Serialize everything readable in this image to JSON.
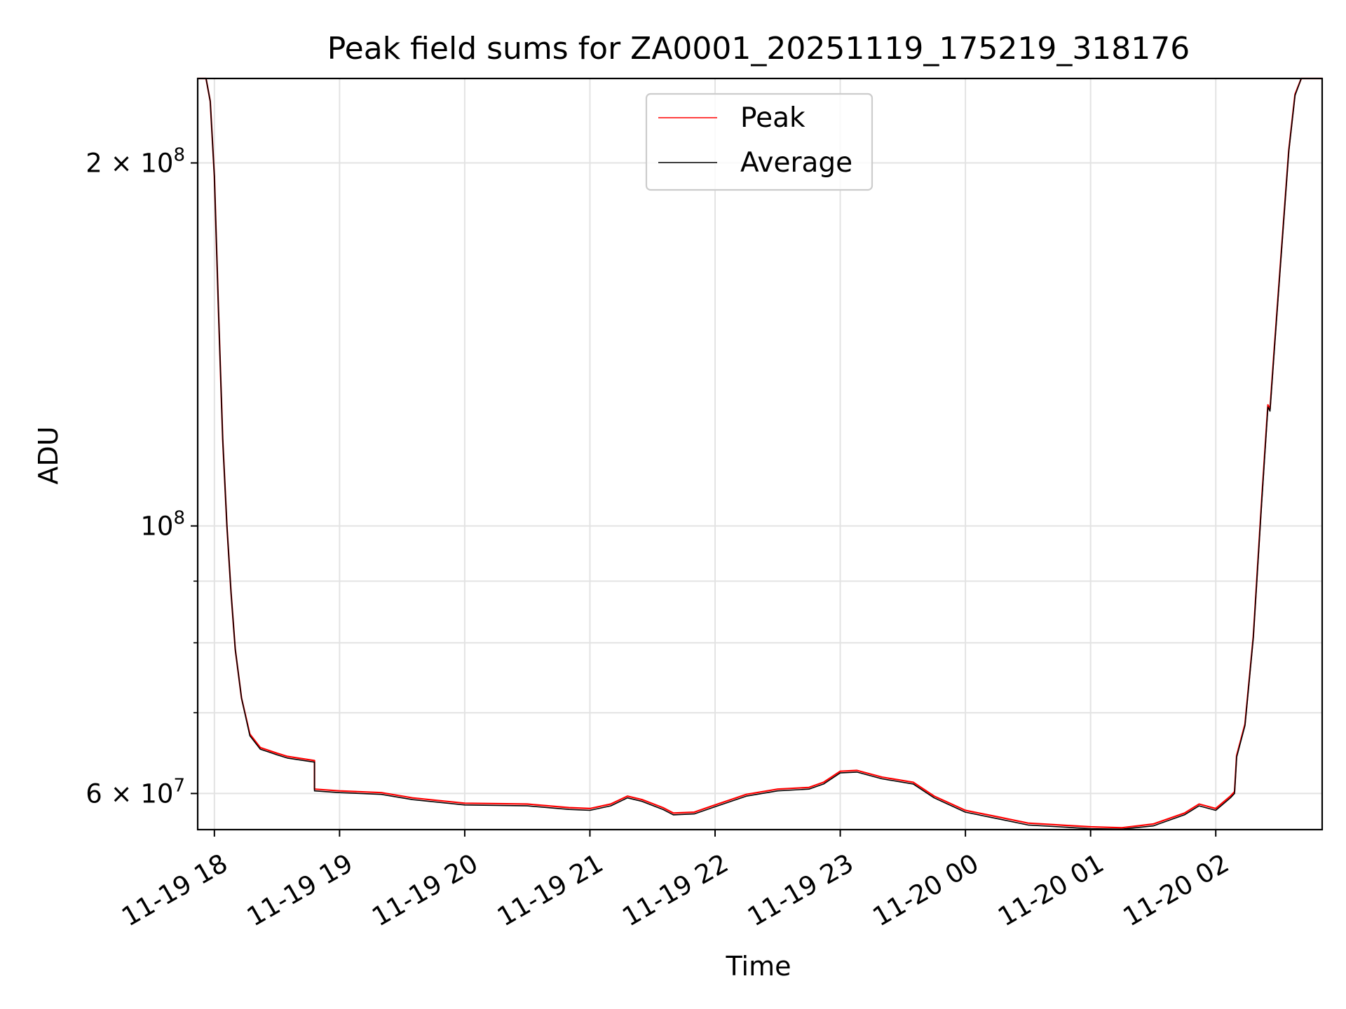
{
  "chart_data": {
    "type": "line",
    "title": "Peak field sums for ZA0001_20251119_175219_318176",
    "xlabel": "Time",
    "ylabel": "ADU",
    "y_scale": "log",
    "grid": true,
    "legend_position": "top-center",
    "xlim": [
      "2025-11-19 17:52",
      "2025-11-20 02:51"
    ],
    "ylim": [
      56000000,
      235000000
    ],
    "x_ticks": [
      {
        "time": "2025-11-19 18:00",
        "label": "11-19 18"
      },
      {
        "time": "2025-11-19 19:00",
        "label": "11-19 19"
      },
      {
        "time": "2025-11-19 20:00",
        "label": "11-19 20"
      },
      {
        "time": "2025-11-19 21:00",
        "label": "11-19 21"
      },
      {
        "time": "2025-11-19 22:00",
        "label": "11-19 22"
      },
      {
        "time": "2025-11-19 23:00",
        "label": "11-19 23"
      },
      {
        "time": "2025-11-20 00:00",
        "label": "11-20 00"
      },
      {
        "time": "2025-11-20 01:00",
        "label": "11-20 01"
      },
      {
        "time": "2025-11-20 02:00",
        "label": "11-20 02"
      }
    ],
    "y_ticks_major": [
      {
        "value": 60000000,
        "base": "6 × 10",
        "exp": "7"
      },
      {
        "value": 100000000,
        "base": "10",
        "exp": "8"
      },
      {
        "value": 200000000,
        "base": "2 × 10",
        "exp": "8"
      }
    ],
    "y_ticks_minor": [
      70000000,
      80000000,
      90000000
    ],
    "series": [
      {
        "name": "Peak",
        "color": "#ff0000",
        "points": [
          [
            "2025-11-19 17:52",
            235000000
          ],
          [
            "2025-11-19 17:56",
            235000000
          ],
          [
            "2025-11-19 17:58",
            225000000
          ],
          [
            "2025-11-19 18:00",
            195000000
          ],
          [
            "2025-11-19 18:02",
            150000000
          ],
          [
            "2025-11-19 18:04",
            118000000
          ],
          [
            "2025-11-19 18:06",
            100000000
          ],
          [
            "2025-11-19 18:08",
            88000000
          ],
          [
            "2025-11-19 18:10",
            79000000
          ],
          [
            "2025-11-19 18:13",
            72000000
          ],
          [
            "2025-11-19 18:17",
            67200000
          ],
          [
            "2025-11-19 18:22",
            65500000
          ],
          [
            "2025-11-19 18:30",
            64800000
          ],
          [
            "2025-11-19 18:35",
            64400000
          ],
          [
            "2025-11-19 18:48",
            63900000
          ],
          [
            "2025-11-19 18:48",
            60500000
          ],
          [
            "2025-11-19 19:00",
            60300000
          ],
          [
            "2025-11-19 19:20",
            60100000
          ],
          [
            "2025-11-19 19:35",
            59500000
          ],
          [
            "2025-11-19 20:00",
            58900000
          ],
          [
            "2025-11-19 20:30",
            58800000
          ],
          [
            "2025-11-19 20:50",
            58400000
          ],
          [
            "2025-11-19 21:00",
            58300000
          ],
          [
            "2025-11-19 21:10",
            58800000
          ],
          [
            "2025-11-19 21:18",
            59700000
          ],
          [
            "2025-11-19 21:25",
            59300000
          ],
          [
            "2025-11-19 21:35",
            58400000
          ],
          [
            "2025-11-19 21:40",
            57800000
          ],
          [
            "2025-11-19 21:50",
            57900000
          ],
          [
            "2025-11-19 22:00",
            58700000
          ],
          [
            "2025-11-19 22:15",
            59900000
          ],
          [
            "2025-11-19 22:30",
            60500000
          ],
          [
            "2025-11-19 22:45",
            60700000
          ],
          [
            "2025-11-19 22:52",
            61300000
          ],
          [
            "2025-11-19 23:00",
            62600000
          ],
          [
            "2025-11-19 23:08",
            62700000
          ],
          [
            "2025-11-19 23:20",
            61900000
          ],
          [
            "2025-11-19 23:35",
            61300000
          ],
          [
            "2025-11-19 23:45",
            59700000
          ],
          [
            "2025-11-20 00:00",
            58100000
          ],
          [
            "2025-11-20 00:15",
            57400000
          ],
          [
            "2025-11-20 00:30",
            56700000
          ],
          [
            "2025-11-20 00:45",
            56500000
          ],
          [
            "2025-11-20 01:00",
            56300000
          ],
          [
            "2025-11-20 01:15",
            56200000
          ],
          [
            "2025-11-20 01:30",
            56600000
          ],
          [
            "2025-11-20 01:45",
            57800000
          ],
          [
            "2025-11-20 01:52",
            58800000
          ],
          [
            "2025-11-20 02:00",
            58300000
          ],
          [
            "2025-11-20 02:07",
            59700000
          ],
          [
            "2025-11-20 02:09",
            60200000
          ],
          [
            "2025-11-20 02:10",
            64500000
          ],
          [
            "2025-11-20 02:14",
            68500000
          ],
          [
            "2025-11-20 02:18",
            81000000
          ],
          [
            "2025-11-20 02:22",
            105000000
          ],
          [
            "2025-11-20 02:25",
            126000000
          ],
          [
            "2025-11-20 02:26",
            125000000
          ],
          [
            "2025-11-20 02:28",
            140000000
          ],
          [
            "2025-11-20 02:31",
            165000000
          ],
          [
            "2025-11-20 02:35",
            205000000
          ],
          [
            "2025-11-20 02:38",
            228000000
          ],
          [
            "2025-11-20 02:41",
            235000000
          ],
          [
            "2025-11-20 02:51",
            235000000
          ]
        ]
      },
      {
        "name": "Average",
        "color": "#000000",
        "points": [
          [
            "2025-11-19 17:52",
            235000000
          ],
          [
            "2025-11-19 17:56",
            235000000
          ],
          [
            "2025-11-19 17:58",
            225000000
          ],
          [
            "2025-11-19 18:00",
            195000000
          ],
          [
            "2025-11-19 18:02",
            150000000
          ],
          [
            "2025-11-19 18:04",
            118000000
          ],
          [
            "2025-11-19 18:06",
            100000000
          ],
          [
            "2025-11-19 18:08",
            88000000
          ],
          [
            "2025-11-19 18:10",
            79000000
          ],
          [
            "2025-11-19 18:13",
            72000000
          ],
          [
            "2025-11-19 18:17",
            67000000
          ],
          [
            "2025-11-19 18:22",
            65300000
          ],
          [
            "2025-11-19 18:30",
            64600000
          ],
          [
            "2025-11-19 18:35",
            64200000
          ],
          [
            "2025-11-19 18:48",
            63700000
          ],
          [
            "2025-11-19 18:48",
            60300000
          ],
          [
            "2025-11-19 19:00",
            60100000
          ],
          [
            "2025-11-19 19:20",
            59900000
          ],
          [
            "2025-11-19 19:35",
            59300000
          ],
          [
            "2025-11-19 20:00",
            58700000
          ],
          [
            "2025-11-19 20:30",
            58600000
          ],
          [
            "2025-11-19 20:50",
            58200000
          ],
          [
            "2025-11-19 21:00",
            58100000
          ],
          [
            "2025-11-19 21:10",
            58600000
          ],
          [
            "2025-11-19 21:18",
            59500000
          ],
          [
            "2025-11-19 21:25",
            59100000
          ],
          [
            "2025-11-19 21:35",
            58200000
          ],
          [
            "2025-11-19 21:40",
            57600000
          ],
          [
            "2025-11-19 21:50",
            57700000
          ],
          [
            "2025-11-19 22:00",
            58500000
          ],
          [
            "2025-11-19 22:15",
            59700000
          ],
          [
            "2025-11-19 22:30",
            60300000
          ],
          [
            "2025-11-19 22:45",
            60500000
          ],
          [
            "2025-11-19 22:52",
            61100000
          ],
          [
            "2025-11-19 23:00",
            62400000
          ],
          [
            "2025-11-19 23:08",
            62500000
          ],
          [
            "2025-11-19 23:20",
            61700000
          ],
          [
            "2025-11-19 23:35",
            61100000
          ],
          [
            "2025-11-19 23:45",
            59500000
          ],
          [
            "2025-11-20 00:00",
            57900000
          ],
          [
            "2025-11-20 00:15",
            57200000
          ],
          [
            "2025-11-20 00:30",
            56500000
          ],
          [
            "2025-11-20 00:45",
            56300000
          ],
          [
            "2025-11-20 01:00",
            56100000
          ],
          [
            "2025-11-20 01:15",
            56050000
          ],
          [
            "2025-11-20 01:30",
            56400000
          ],
          [
            "2025-11-20 01:45",
            57600000
          ],
          [
            "2025-11-20 01:52",
            58600000
          ],
          [
            "2025-11-20 02:00",
            58100000
          ],
          [
            "2025-11-20 02:07",
            59500000
          ],
          [
            "2025-11-20 02:09",
            60000000
          ],
          [
            "2025-11-20 02:10",
            64300000
          ],
          [
            "2025-11-20 02:14",
            68300000
          ],
          [
            "2025-11-20 02:18",
            80800000
          ],
          [
            "2025-11-20 02:22",
            104500000
          ],
          [
            "2025-11-20 02:25",
            125500000
          ],
          [
            "2025-11-20 02:26",
            124500000
          ],
          [
            "2025-11-20 02:28",
            139500000
          ],
          [
            "2025-11-20 02:31",
            164500000
          ],
          [
            "2025-11-20 02:35",
            204500000
          ],
          [
            "2025-11-20 02:38",
            227500000
          ],
          [
            "2025-11-20 02:41",
            235000000
          ],
          [
            "2025-11-20 02:51",
            235000000
          ]
        ]
      }
    ]
  }
}
